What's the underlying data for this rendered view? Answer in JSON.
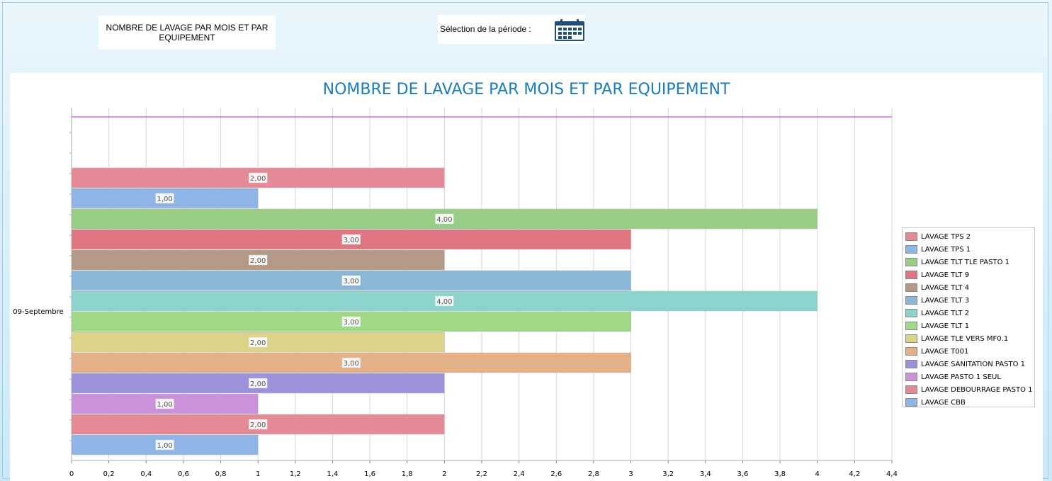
{
  "header": {
    "report_title": "NOMBRE DE LAVAGE PAR MOIS ET PAR EQUIPEMENT",
    "period_label": "Sélection de la période :",
    "period_icon": "calendar-icon"
  },
  "chart_data": {
    "type": "bar",
    "orientation": "horizontal",
    "title": "NOMBRE DE LAVAGE PAR MOIS ET PAR EQUIPEMENT",
    "category": "09-Septembre",
    "xlim": [
      0,
      4.4
    ],
    "x_ticks": [
      "0",
      "0,2",
      "0,4",
      "0,6",
      "0,8",
      "1",
      "1,2",
      "1,4",
      "1,6",
      "1,8",
      "2",
      "2,2",
      "2,4",
      "2,6",
      "2,8",
      "3",
      "3,2",
      "3,4",
      "3,6",
      "3,8",
      "4",
      "4,2",
      "4,4"
    ],
    "grid": true,
    "legend_position": "right",
    "series": [
      {
        "name": "LAVAGE TPS 2",
        "value": 2,
        "label": "2,00",
        "color": "#e48a96"
      },
      {
        "name": "LAVAGE TPS 1",
        "value": 1,
        "label": "1,00",
        "color": "#8fb4e6"
      },
      {
        "name": "LAVAGE TLT TLE PASTO 1",
        "value": 4,
        "label": "4,00",
        "color": "#97cd85"
      },
      {
        "name": "LAVAGE TLT 9",
        "value": 3,
        "label": "3,00",
        "color": "#df7580"
      },
      {
        "name": "LAVAGE TLT 4",
        "value": 2,
        "label": "2,00",
        "color": "#b49a86"
      },
      {
        "name": "LAVAGE TLT 3",
        "value": 3,
        "label": "3,00",
        "color": "#8ab6d8"
      },
      {
        "name": "LAVAGE TLT 2",
        "value": 4,
        "label": "4,00",
        "color": "#8ad4cc"
      },
      {
        "name": "LAVAGE TLT 1",
        "value": 3,
        "label": "3,00",
        "color": "#a0d888"
      },
      {
        "name": "LAVAGE TLE VERS MF0.1",
        "value": 2,
        "label": "2,00",
        "color": "#dbd488"
      },
      {
        "name": "LAVAGE T001",
        "value": 3,
        "label": "3,00",
        "color": "#e3b088"
      },
      {
        "name": "LAVAGE SANITATION PASTO 1",
        "value": 2,
        "label": "2,00",
        "color": "#9c92dc"
      },
      {
        "name": "LAVAGE PASTO 1 SEUL",
        "value": 1,
        "label": "1,00",
        "color": "#cb92da"
      },
      {
        "name": "LAVAGE DEBOURRAGE PASTO 1",
        "value": 2,
        "label": "2,00",
        "color": "#e48a96"
      },
      {
        "name": "LAVAGE CBB",
        "value": 1,
        "label": "1,00",
        "color": "#8fb4e6"
      }
    ]
  }
}
